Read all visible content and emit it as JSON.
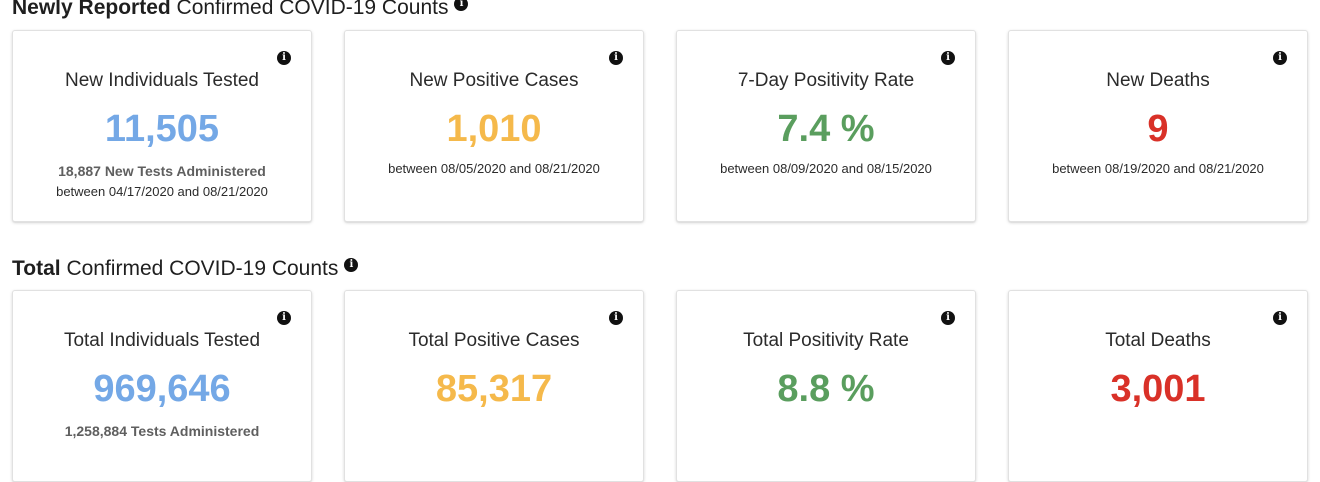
{
  "new_section": {
    "title_bold": "Newly Reported",
    "title_rest": " Confirmed COVID-19 Counts",
    "cards": [
      {
        "title": "New Individuals Tested",
        "value": "11,505",
        "sub": "18,887 New Tests Administered",
        "date": "between 04/17/2020 and 08/21/2020",
        "color": "#74a8e6"
      },
      {
        "title": "New Positive Cases",
        "value": "1,010",
        "date": "between 08/05/2020 and 08/21/2020",
        "color": "#f5b94b"
      },
      {
        "title": "7-Day Positivity Rate",
        "value": "7.4 %",
        "date": "between 08/09/2020 and 08/15/2020",
        "color": "#5a9e5e"
      },
      {
        "title": "New Deaths",
        "value": "9",
        "date": "between 08/19/2020 and 08/21/2020",
        "color": "#d93128"
      }
    ]
  },
  "total_section": {
    "title_bold": "Total",
    "title_rest": " Confirmed COVID-19 Counts",
    "cards": [
      {
        "title": "Total Individuals Tested",
        "value": "969,646",
        "sub": "1,258,884 Tests Administered",
        "color": "#74a8e6"
      },
      {
        "title": "Total Positive Cases",
        "value": "85,317",
        "color": "#f5b94b"
      },
      {
        "title": "Total Positivity Rate",
        "value": "8.8 %",
        "color": "#5a9e5e"
      },
      {
        "title": "Total Deaths",
        "value": "3,001",
        "color": "#d93128"
      }
    ]
  },
  "info_icon_glyph": "i"
}
